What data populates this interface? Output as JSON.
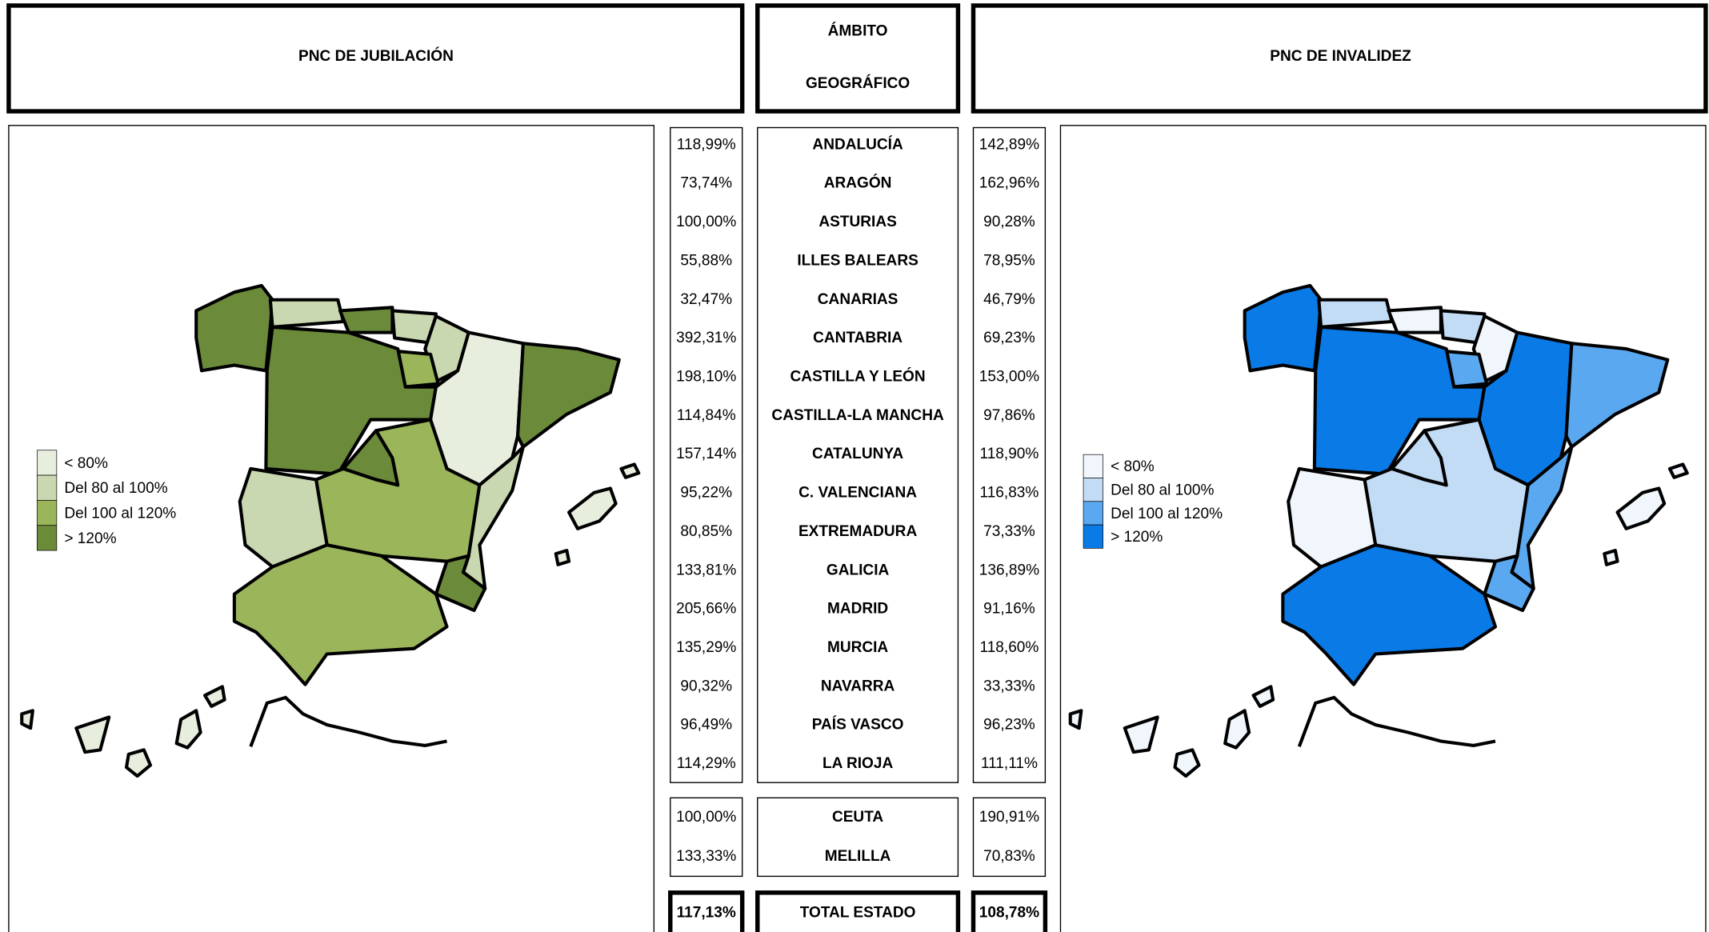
{
  "header": {
    "left_title": "PNC DE JUBILACIÓN",
    "center_title": [
      "ÁMBITO",
      "GEOGRÁFICO"
    ],
    "right_title": "PNC DE INVALIDEZ"
  },
  "legend": [
    "< 80%",
    "Del 80 al 100%",
    "Del 100 al 120%",
    "> 120%"
  ],
  "table": {
    "rows": [
      [
        "118,99%",
        "ANDALUCÍA",
        "142,89%"
      ],
      [
        "73,74%",
        "ARAGÓN",
        "162,96%"
      ],
      [
        "100,00%",
        "ASTURIAS",
        "90,28%"
      ],
      [
        "55,88%",
        "ILLES BALEARS",
        "78,95%"
      ],
      [
        "32,47%",
        "CANARIAS",
        "46,79%"
      ],
      [
        "392,31%",
        "CANTABRIA",
        "69,23%"
      ],
      [
        "198,10%",
        "CASTILLA Y LEÓN",
        "153,00%"
      ],
      [
        "114,84%",
        "CASTILLA-LA MANCHA",
        "97,86%"
      ],
      [
        "157,14%",
        "CATALUNYA",
        "118,90%"
      ],
      [
        "95,22%",
        "C. VALENCIANA",
        "116,83%"
      ],
      [
        "80,85%",
        "EXTREMADURA",
        "73,33%"
      ],
      [
        "133,81%",
        "GALICIA",
        "136,89%"
      ],
      [
        "205,66%",
        "MADRID",
        "91,16%"
      ],
      [
        "135,29%",
        "MURCIA",
        "118,60%"
      ],
      [
        "90,32%",
        "NAVARRA",
        "33,33%"
      ],
      [
        "96,49%",
        "PAÍS VASCO",
        "96,23%"
      ],
      [
        "114,29%",
        "LA RIOJA",
        "111,11%"
      ]
    ],
    "cities": [
      [
        "100,00%",
        "CEUTA",
        "190,91%"
      ],
      [
        "133,33%",
        "MELILLA",
        "70,83%"
      ]
    ],
    "total": [
      "117,13%",
      "TOTAL ESTADO",
      "108,78%"
    ]
  }
}
